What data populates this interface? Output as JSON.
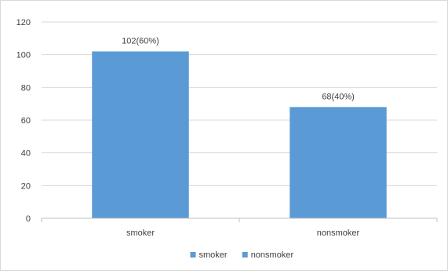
{
  "chart_data": {
    "type": "bar",
    "categories": [
      "smoker",
      "nonsmoker"
    ],
    "values": [
      102,
      68
    ],
    "data_labels": [
      "102(60%)",
      "68(40%)"
    ],
    "ylim": [
      0,
      120
    ],
    "yticks": [
      0,
      20,
      40,
      60,
      80,
      100,
      120
    ],
    "grid": true,
    "legend": {
      "position": "bottom",
      "entries": [
        "smoker",
        "nonsmoker"
      ]
    },
    "colors": {
      "bar": "#5b9bd5",
      "grid": "#d9d9d9",
      "axis": "#bfbfbf",
      "text": "#404040"
    }
  }
}
